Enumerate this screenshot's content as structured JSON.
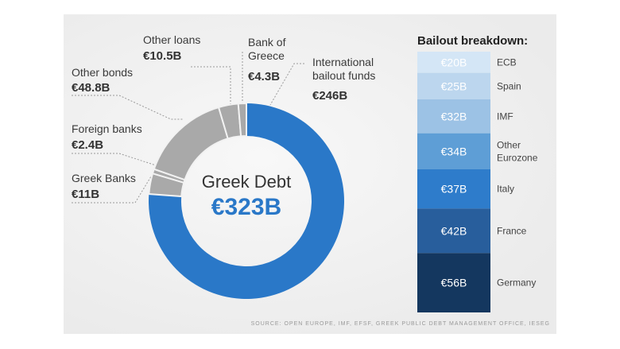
{
  "chart_data": [
    {
      "type": "donut",
      "categories": [
        "International bailout funds",
        "Greek Banks",
        "Foreign banks",
        "Other bonds",
        "Other loans",
        "Bank of Greece"
      ],
      "values": [
        246,
        11,
        2.4,
        48.8,
        10.5,
        4.3
      ],
      "value_labels": [
        "€246B",
        "€11B",
        "€2.4B",
        "€48.8B",
        "€10.5B",
        "€4.3B"
      ],
      "colors": [
        "#2a78c8",
        "#a9a9a9",
        "#a9a9a9",
        "#a9a9a9",
        "#a9a9a9",
        "#a9a9a9"
      ],
      "center_title": "Greek Debt",
      "center_label": "€323B"
    },
    {
      "type": "stacked-bar",
      "title": "Bailout breakdown:",
      "categories": [
        "ECB",
        "Spain",
        "IMF",
        "Other Eurozone",
        "Italy",
        "France",
        "Germany"
      ],
      "values": [
        20,
        25,
        32,
        34,
        37,
        42,
        56
      ],
      "value_labels": [
        "€20B",
        "€25B",
        "€32B",
        "€34B",
        "€37B",
        "€42B",
        "€56B"
      ],
      "colors": [
        "#d4e6f6",
        "#bcd6ee",
        "#9cc2e5",
        "#5e9ed6",
        "#2e7ccb",
        "#285e9c",
        "#14375f"
      ]
    }
  ],
  "source": "SOURCE: OPEN EUROPE, IMF, EFSF, GREEK PUBLIC DEBT MANAGEMENT OFFICE, IESEG"
}
